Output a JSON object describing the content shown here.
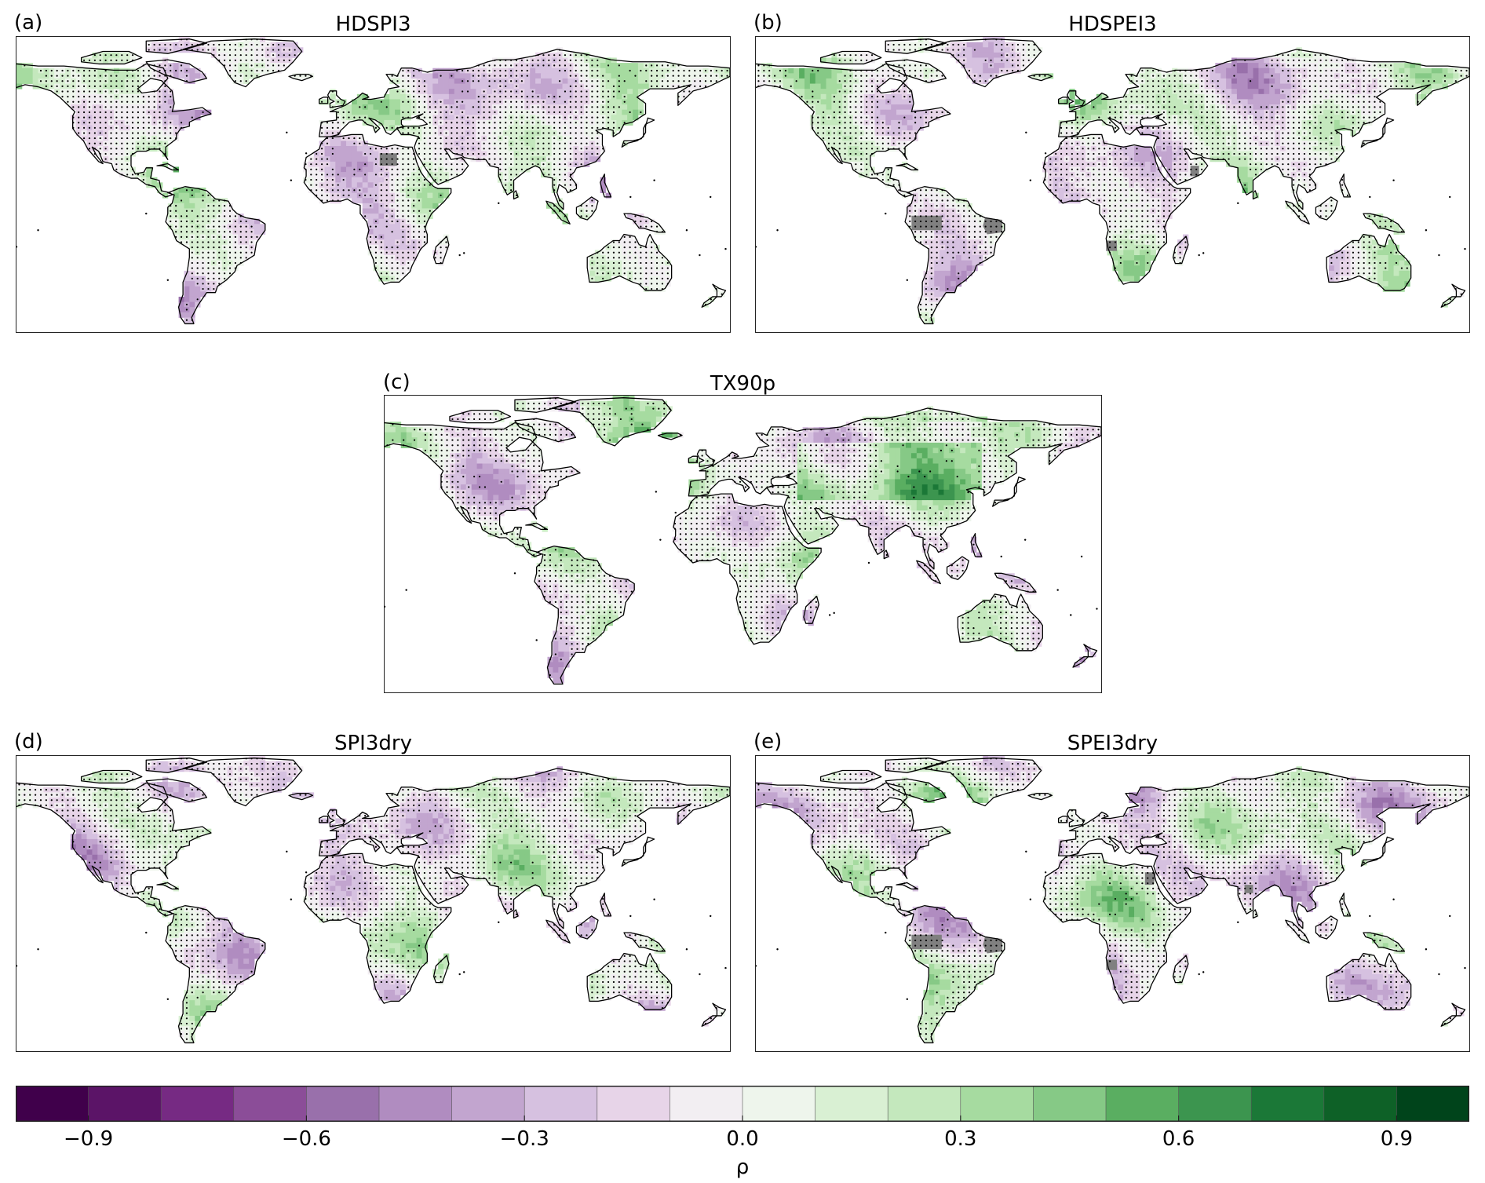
{
  "panels": [
    {
      "id": "a",
      "letter": "(a)",
      "title": "HDSPI3"
    },
    {
      "id": "b",
      "letter": "(b)",
      "title": "HDSPEI3"
    },
    {
      "id": "c",
      "letter": "(c)",
      "title": "TX90p"
    },
    {
      "id": "d",
      "letter": "(d)",
      "title": "SPI3dry"
    },
    {
      "id": "e",
      "letter": "(e)",
      "title": "SPEI3dry"
    }
  ],
  "colorbar": {
    "label": "ρ",
    "range": [
      -1.0,
      1.0
    ],
    "step": 0.1,
    "ticks": [
      "−0.9",
      "−0.6",
      "−0.3",
      "0.0",
      "0.3",
      "0.6",
      "0.9"
    ],
    "tick_values": [
      -0.9,
      -0.6,
      -0.3,
      0.0,
      0.3,
      0.6,
      0.9
    ],
    "colors": [
      "#40004b",
      "#5b1467",
      "#762a83",
      "#8b4d98",
      "#9970ab",
      "#b08cc0",
      "#c2a5cf",
      "#d6c1e0",
      "#e7d4e8",
      "#f2eef2",
      "#eef5ec",
      "#d9f0d3",
      "#c4e8bd",
      "#a6dba0",
      "#86c986",
      "#5aae61",
      "#3c954f",
      "#1b7837",
      "#0e6127",
      "#00441b"
    ]
  },
  "map_colors": {
    "stipple": "#000000",
    "coast": "#000000",
    "missing": "#808080"
  }
}
